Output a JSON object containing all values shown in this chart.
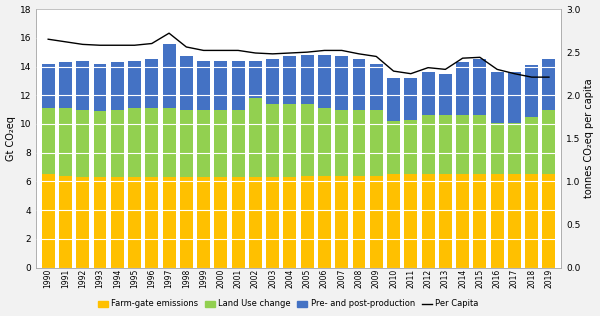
{
  "years": [
    1990,
    1991,
    1992,
    1993,
    1994,
    1995,
    1996,
    1997,
    1998,
    1999,
    2000,
    2001,
    2002,
    2003,
    2004,
    2005,
    2006,
    2007,
    2008,
    2009,
    2010,
    2011,
    2012,
    2013,
    2014,
    2015,
    2016,
    2017,
    2018,
    2019
  ],
  "farm_gate": [
    6.5,
    6.4,
    6.3,
    6.3,
    6.3,
    6.3,
    6.3,
    6.3,
    6.3,
    6.3,
    6.3,
    6.3,
    6.3,
    6.3,
    6.3,
    6.4,
    6.4,
    6.4,
    6.4,
    6.4,
    6.5,
    6.5,
    6.5,
    6.5,
    6.5,
    6.5,
    6.5,
    6.5,
    6.5,
    6.5
  ],
  "land_use": [
    4.6,
    4.7,
    4.7,
    4.6,
    4.7,
    4.8,
    4.8,
    4.8,
    4.7,
    4.7,
    4.7,
    4.7,
    5.5,
    5.1,
    5.1,
    5.0,
    4.7,
    4.6,
    4.6,
    4.6,
    3.7,
    3.8,
    4.1,
    4.1,
    4.1,
    4.1,
    3.6,
    3.6,
    4.0,
    4.5
  ],
  "pre_post": [
    3.1,
    3.2,
    3.4,
    3.3,
    3.3,
    3.3,
    3.4,
    4.5,
    3.7,
    3.4,
    3.4,
    3.4,
    2.6,
    3.1,
    3.3,
    3.4,
    3.7,
    3.7,
    3.5,
    3.2,
    3.0,
    2.9,
    3.0,
    2.9,
    3.7,
    3.9,
    3.5,
    3.5,
    3.6,
    3.5
  ],
  "per_capita": [
    2.65,
    2.62,
    2.59,
    2.58,
    2.58,
    2.58,
    2.6,
    2.72,
    2.56,
    2.52,
    2.52,
    2.52,
    2.49,
    2.48,
    2.49,
    2.5,
    2.52,
    2.52,
    2.48,
    2.45,
    2.28,
    2.25,
    2.32,
    2.3,
    2.43,
    2.44,
    2.3,
    2.25,
    2.21,
    2.21
  ],
  "color_farm": "#FFC000",
  "color_land": "#92D050",
  "color_pre": "#4472C4",
  "color_line": "#000000",
  "ylabel_left": "Gt CO₂eq",
  "ylabel_right": "tonnes CO₂eq per capita",
  "ylim_left": [
    0,
    18
  ],
  "ylim_right": [
    0,
    3
  ],
  "yticks_left": [
    0,
    2,
    4,
    6,
    8,
    10,
    12,
    14,
    16,
    18
  ],
  "yticks_right": [
    0,
    0.5,
    1.0,
    1.5,
    2.0,
    2.5,
    3.0
  ],
  "legend_labels": [
    "Farm-gate emissions",
    "Land Use change",
    "Pre- and post-production",
    "Per Capita"
  ],
  "bg_color": "#f2f2f2",
  "plot_bg": "#ffffff",
  "grid_color": "#ffffff"
}
